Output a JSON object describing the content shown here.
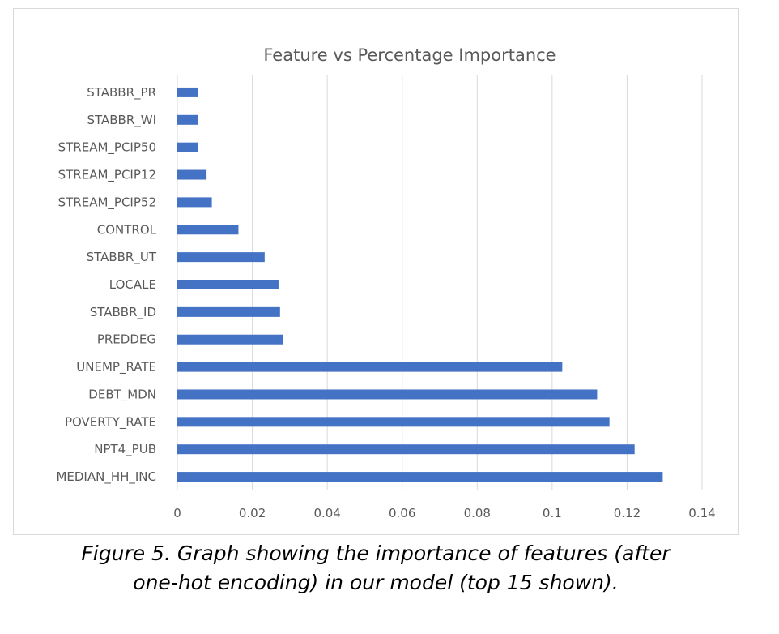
{
  "chart_data": {
    "type": "bar",
    "orientation": "horizontal",
    "title": "Feature vs Percentage Importance",
    "xlabel": "",
    "ylabel": "",
    "categories": [
      "STABBR_PR",
      "STABBR_WI",
      "STREAM_PCIP50",
      "STREAM_PCIP12",
      "STREAM_PCIP52",
      "CONTROL",
      "STABBR_UT",
      "LOCALE",
      "STABBR_ID",
      "PREDDEG",
      "UNEMP_RATE",
      "DEBT_MDN",
      "POVERTY_RATE",
      "NPT4_PUB",
      "MEDIAN_HH_INC"
    ],
    "values": [
      0.0055,
      0.0055,
      0.0055,
      0.0078,
      0.0092,
      0.0163,
      0.0233,
      0.027,
      0.0274,
      0.0281,
      0.1027,
      0.112,
      0.1153,
      0.122,
      0.1295
    ],
    "xlim": [
      0,
      0.14
    ],
    "ticks": [
      "0",
      "0.02",
      "0.04",
      "0.06",
      "0.08",
      "0.1",
      "0.12",
      "0.14"
    ],
    "tick_values": [
      0,
      0.02,
      0.04,
      0.06,
      0.08,
      0.1,
      0.12,
      0.14
    ],
    "grid": "vertical",
    "legend": "none",
    "bar_color": "#4472c4"
  },
  "caption": "Figure 5. Graph showing the importance of features (after\none-hot encoding) in our model (top 15 shown)."
}
